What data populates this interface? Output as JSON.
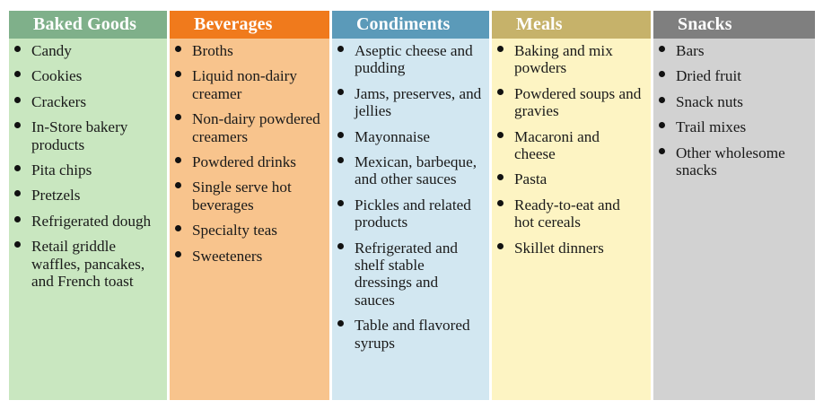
{
  "columns": [
    {
      "title": "Baked Goods",
      "header_color": "#7fb08a",
      "body_color": "#c9e7c0",
      "items": [
        "Candy",
        "Cookies",
        "Crackers",
        "In-Store bakery products",
        "Pita chips",
        "Pretzels",
        "Refrigerated dough",
        "Retail griddle waffles, pancakes, and French toast"
      ]
    },
    {
      "title": "Beverages",
      "header_color": "#f07a1c",
      "body_color": "#f8c48d",
      "items": [
        "Broths",
        "Liquid non-dairy creamer",
        "Non-dairy powdered creamers",
        "Powdered drinks",
        "Single serve hot beverages",
        "Specialty teas",
        "Sweeteners"
      ]
    },
    {
      "title": "Condiments",
      "header_color": "#5b9ab9",
      "body_color": "#d2e7f1",
      "items": [
        "Aseptic cheese and pudding",
        "Jams, preserves, and jellies",
        "Mayonnaise",
        "Mexican, barbeque, and other sauces",
        "Pickles and related products",
        "Refrigerated and shelf stable dressings and sauces",
        "Table and flavored syrups"
      ]
    },
    {
      "title": "Meals",
      "header_color": "#c6b26a",
      "body_color": "#fdf4c3",
      "items": [
        "Baking and mix powders",
        "Powdered soups and gravies",
        "Macaroni and cheese",
        "Pasta",
        "Ready-to-eat and hot cereals",
        "Skillet dinners"
      ]
    },
    {
      "title": "Snacks",
      "header_color": "#7f7f7f",
      "body_color": "#d2d2d2",
      "items": [
        "Bars",
        "Dried fruit",
        "Snack nuts",
        "Trail mixes",
        "Other wholesome snacks"
      ]
    }
  ]
}
